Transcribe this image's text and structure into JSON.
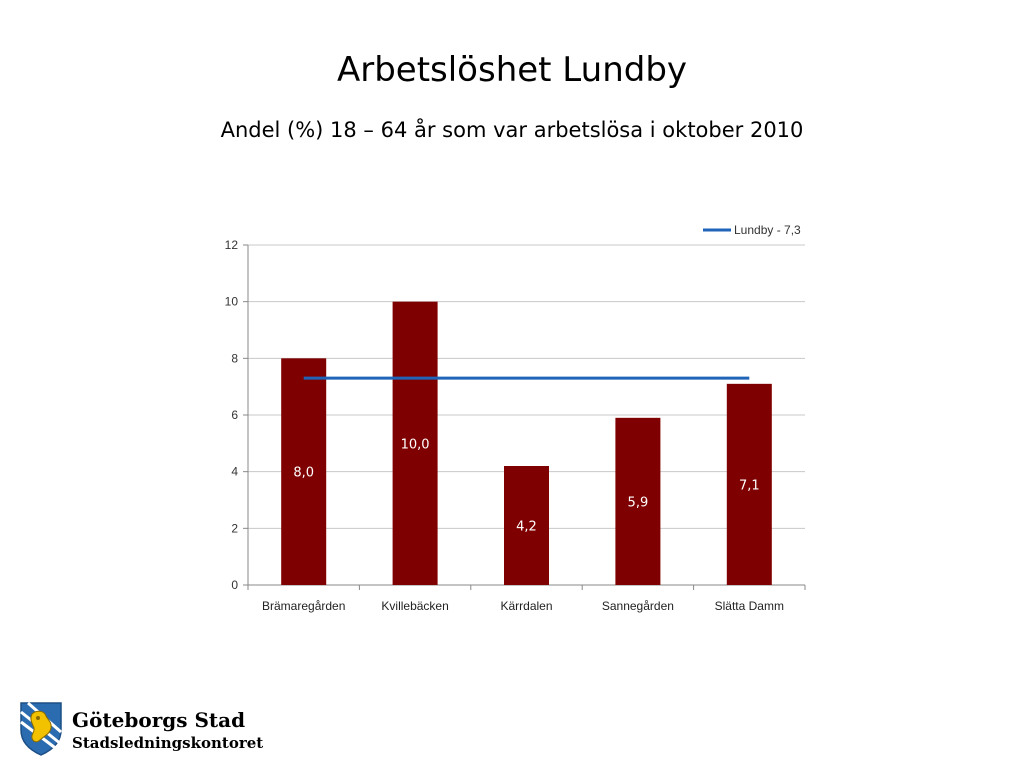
{
  "title": "Arbetslöshet Lundby",
  "subtitle": "Andel (%) 18 – 64 år som var arbetslösa i oktober 2010",
  "chart_data": {
    "type": "bar",
    "categories": [
      "Brämaregården",
      "Kvillebäcken",
      "Kärrdalen",
      "Sannegården",
      "Slätta Damm"
    ],
    "values": [
      8.0,
      10.0,
      4.2,
      5.9,
      7.1
    ],
    "value_labels": [
      "8,0",
      "10,0",
      "4,2",
      "5,9",
      "7,1"
    ],
    "ylim": [
      0,
      12
    ],
    "yticks": [
      0,
      2,
      4,
      6,
      8,
      10,
      12
    ],
    "grid": true,
    "bar_color": "#7f0000",
    "reference_line": {
      "name": "Lundby - 7,3",
      "value": 7.3,
      "color": "#1f64b8"
    },
    "legend_position": "top-right"
  },
  "logo": {
    "name": "Göteborgs Stad",
    "department": "Stadsledningskontoret",
    "icon": "goteborg-crest-icon"
  }
}
